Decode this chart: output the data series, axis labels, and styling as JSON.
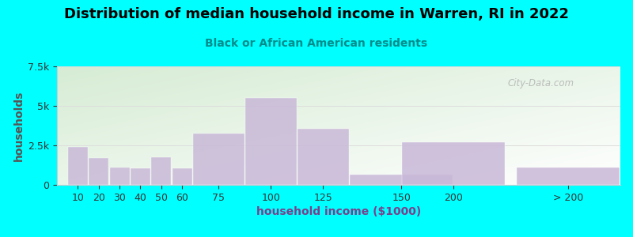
{
  "title": "Distribution of median household income in Warren, RI in 2022",
  "subtitle": "Black or African American residents",
  "xlabel": "household income ($1000)",
  "ylabel": "households",
  "background_color": "#00FFFF",
  "plot_bg_top_left": "#d6ecd4",
  "plot_bg_bottom_right": "#ffffff",
  "bar_color": "#c9b8d8",
  "bar_alpha": 0.85,
  "ylim": [
    0,
    7500
  ],
  "yticks": [
    0,
    2500,
    5000,
    7500
  ],
  "ytick_labels": [
    "0",
    "2.5k",
    "5k",
    "7.5k"
  ],
  "categories": [
    "10",
    "20",
    "30",
    "40",
    "50",
    "60",
    "75",
    "100",
    "125",
    "150",
    "200",
    "> 200"
  ],
  "values": [
    2400,
    1700,
    1100,
    1050,
    1750,
    1050,
    3250,
    5500,
    3550,
    650,
    2700,
    1100
  ],
  "bar_lefts": [
    5,
    15,
    25,
    35,
    45,
    55,
    65,
    90,
    115,
    140,
    165,
    220
  ],
  "bar_widths": [
    10,
    10,
    10,
    10,
    10,
    10,
    25,
    25,
    25,
    50,
    50,
    50
  ],
  "watermark": "City-Data.com",
  "title_fontsize": 13,
  "subtitle_fontsize": 10,
  "label_fontsize": 10,
  "tick_fontsize": 9,
  "subtitle_color": "#008B8B",
  "grid_color": "#dddddd"
}
